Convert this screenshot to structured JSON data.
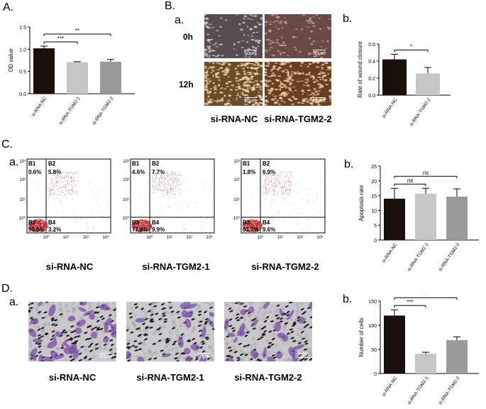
{
  "panels": {
    "A": "A.",
    "B": "B.",
    "B_a": "a.",
    "B_b": "b.",
    "C": "C.",
    "C_a": "a.",
    "C_b": "b.",
    "D": "D.",
    "D_a": "a.",
    "D_b": "b."
  },
  "wound": {
    "row_labels": [
      "0h",
      "12h"
    ],
    "scale_bar": "50μm",
    "captions": [
      "si-RNA-NC",
      "si-RNA-TGM2-2"
    ]
  },
  "flow": {
    "captions": [
      "si-RNA-NC",
      "si-RNA-TGM2-1",
      "si-RNA-TGM2-2"
    ],
    "quadrant_labels": [
      "B1",
      "B2",
      "B3",
      "B4"
    ],
    "axis_ticks": [
      "10⁰",
      "10¹",
      "10²",
      "10³"
    ],
    "plots": [
      {
        "B1": "0.6%",
        "B2": "5.8%",
        "B3": "90.5%",
        "B4": "3.2%"
      },
      {
        "B1": "4.6%",
        "B2": "7.7%",
        "B3": "77.8%",
        "B4": "9.9%"
      },
      {
        "B1": "1.8%",
        "B2": "6.9%",
        "B3": "81.7%",
        "B4": "9.6%"
      }
    ],
    "dot_color": "#c0262c"
  },
  "transwell": {
    "captions": [
      "si-RNA-NC",
      "si-RNA-TGM2-1",
      "si-RNA-TGM2-2"
    ],
    "scale_bar": "50μm"
  },
  "chart_data": [
    {
      "type": "bar",
      "panel": "A",
      "categories": [
        "si-RNA-NC",
        "si-RNA-TGM2-1",
        "si-RNA-TGM2-2"
      ],
      "values": [
        1.02,
        0.71,
        0.72
      ],
      "errors": [
        0.05,
        0.01,
        0.05
      ],
      "colors": [
        "#1a0f0a",
        "#c6c6c6",
        "#9a9a9a"
      ],
      "ylabel": "OD value",
      "ylim": [
        0,
        1.5
      ],
      "yticks": [
        "0.0",
        "0.5",
        "1.0",
        "1.5"
      ],
      "significance": [
        {
          "from": 0,
          "to": 1,
          "label": "***"
        },
        {
          "from": 0,
          "to": 2,
          "label": "**"
        }
      ]
    },
    {
      "type": "bar",
      "panel": "B.b",
      "categories": [
        "si-RNA-NC",
        "si-RNA-TGM2-2"
      ],
      "values": [
        0.42,
        0.255
      ],
      "errors": [
        0.06,
        0.07
      ],
      "colors": [
        "#1a0f0a",
        "#c6c6c6"
      ],
      "ylabel": "Rate of wound closure",
      "ylim": [
        0,
        0.6
      ],
      "yticks": [
        "0.0",
        "0.2",
        "0.4",
        "0.6"
      ],
      "significance": [
        {
          "from": 0,
          "to": 1,
          "label": "*"
        }
      ]
    },
    {
      "type": "bar",
      "panel": "C.b",
      "categories": [
        "si-RNA-NC",
        "si-RNA-TGM2-1",
        "si-RNA-TGM2-2"
      ],
      "values": [
        14.0,
        15.7,
        14.7
      ],
      "errors": [
        3.5,
        1.8,
        2.6
      ],
      "colors": [
        "#1a0f0a",
        "#c6c6c6",
        "#9a9a9a"
      ],
      "ylabel": "Apoptosis rate",
      "ylim": [
        0,
        25
      ],
      "yticks": [
        "0",
        "5",
        "10",
        "15",
        "20",
        "25"
      ],
      "significance": [
        {
          "from": 0,
          "to": 1,
          "label": "ns"
        },
        {
          "from": 0,
          "to": 2,
          "label": "ns"
        }
      ]
    },
    {
      "type": "bar",
      "panel": "D.b",
      "categories": [
        "si-RNA-NC",
        "si-RNA-TGM2-1",
        "si-RNA-TGM2-2"
      ],
      "values": [
        120,
        41,
        69
      ],
      "errors": [
        12,
        3,
        7
      ],
      "colors": [
        "#1a0f0a",
        "#c6c6c6",
        "#9a9a9a"
      ],
      "ylabel": "Number of cells",
      "ylim": [
        0,
        150
      ],
      "yticks": [
        "0",
        "50",
        "100",
        "150"
      ],
      "significance": [
        {
          "from": 0,
          "to": 1,
          "label": "***"
        },
        {
          "from": 0,
          "to": 2,
          "label": "**"
        }
      ]
    }
  ]
}
